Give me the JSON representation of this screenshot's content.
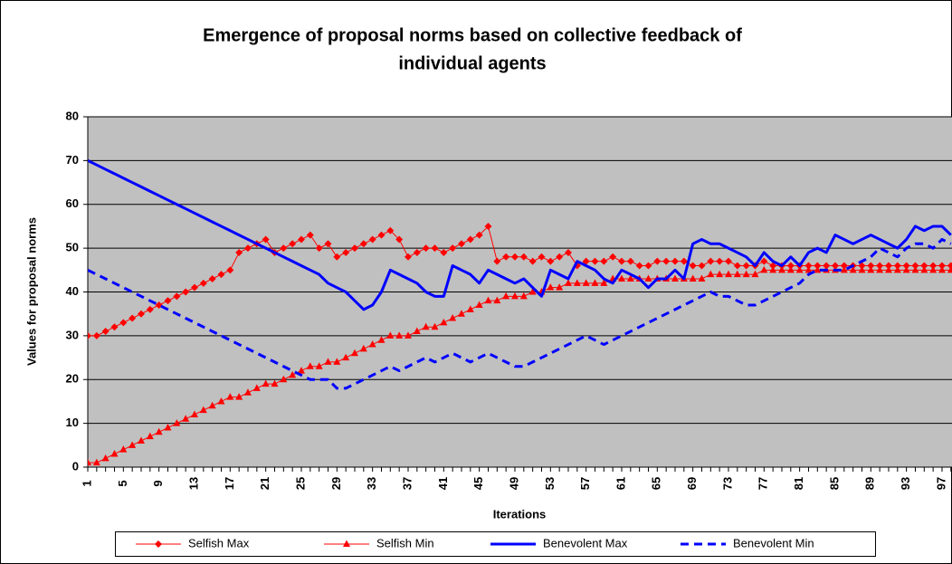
{
  "chart_data": {
    "type": "line",
    "title": "Emergence of proposal norms based on collective feedback of",
    "title_line2": "individual agents",
    "x_label": "Iterations",
    "y_label": "Values for proposal norms",
    "categories": [
      1,
      null,
      null,
      null,
      5,
      null,
      null,
      null,
      9,
      null,
      null,
      null,
      13,
      null,
      null,
      null,
      17,
      null,
      null,
      null,
      21,
      null,
      null,
      null,
      25,
      null,
      null,
      null,
      29,
      null,
      null,
      null,
      33,
      null,
      null,
      null,
      37,
      null,
      null,
      null,
      41,
      null,
      null,
      null,
      45,
      null,
      null,
      null,
      49,
      null,
      null,
      null,
      53,
      null,
      null,
      null,
      57,
      null,
      null,
      null,
      61,
      null,
      null,
      null,
      65,
      null,
      null,
      null,
      69,
      null,
      null,
      null,
      73,
      null,
      null,
      null,
      77,
      null,
      null,
      null,
      81,
      null,
      null,
      null,
      85,
      null,
      null,
      null,
      89,
      null,
      null,
      null,
      93,
      null,
      null,
      null,
      97,
      null
    ],
    "ylim": [
      0,
      80
    ],
    "yticks": [
      0,
      10,
      20,
      30,
      40,
      50,
      60,
      70,
      80
    ],
    "grid": true,
    "legend": "bottom",
    "series": [
      {
        "name": "Selfish Max",
        "color": "#ff0000",
        "marker": "diamond",
        "style": "solid",
        "width": 1,
        "values": [
          30,
          30,
          31,
          32,
          33,
          34,
          35,
          36,
          37,
          38,
          39,
          40,
          41,
          42,
          43,
          44,
          45,
          49,
          50,
          51,
          52,
          49,
          50,
          51,
          52,
          53,
          50,
          51,
          48,
          49,
          50,
          51,
          52,
          53,
          54,
          52,
          48,
          49,
          50,
          50,
          49,
          50,
          51,
          52,
          53,
          55,
          47,
          48,
          48,
          48,
          47,
          48,
          47,
          48,
          49,
          46,
          47,
          47,
          47,
          48,
          47,
          47,
          46,
          46,
          47,
          47,
          47,
          47,
          46,
          46,
          47,
          47,
          47,
          46,
          46,
          46,
          47,
          46,
          46,
          46,
          46,
          46,
          46,
          46,
          46,
          46,
          46,
          46,
          46,
          46,
          46,
          46,
          46,
          46,
          46,
          46,
          46,
          46
        ]
      },
      {
        "name": "Selfish Min",
        "color": "#ff0000",
        "marker": "triangle",
        "style": "solid",
        "width": 1,
        "values": [
          1,
          1,
          2,
          3,
          4,
          5,
          6,
          7,
          8,
          9,
          10,
          11,
          12,
          13,
          14,
          15,
          16,
          16,
          17,
          18,
          19,
          19,
          20,
          21,
          22,
          23,
          23,
          24,
          24,
          25,
          26,
          27,
          28,
          29,
          30,
          30,
          30,
          31,
          32,
          32,
          33,
          34,
          35,
          36,
          37,
          38,
          38,
          39,
          39,
          39,
          40,
          40,
          41,
          41,
          42,
          42,
          42,
          42,
          42,
          43,
          43,
          43,
          43,
          43,
          43,
          43,
          43,
          43,
          43,
          43,
          44,
          44,
          44,
          44,
          44,
          44,
          45,
          45,
          45,
          45,
          45,
          45,
          45,
          45,
          45,
          45,
          45,
          45,
          45,
          45,
          45,
          45,
          45,
          45,
          45,
          45,
          45,
          45
        ]
      },
      {
        "name": "Benevolent Max",
        "color": "#0000ff",
        "marker": "none",
        "style": "solid",
        "width": 3,
        "values": [
          70,
          69,
          68,
          67,
          66,
          65,
          64,
          63,
          62,
          61,
          60,
          59,
          58,
          57,
          56,
          55,
          54,
          53,
          52,
          51,
          50,
          49,
          48,
          47,
          46,
          45,
          44,
          42,
          41,
          40,
          38,
          36,
          37,
          40,
          45,
          44,
          43,
          42,
          40,
          39,
          39,
          46,
          45,
          44,
          42,
          45,
          44,
          43,
          42,
          43,
          41,
          39,
          45,
          44,
          43,
          47,
          46,
          45,
          43,
          42,
          45,
          44,
          43,
          41,
          43,
          43,
          45,
          43,
          51,
          52,
          51,
          51,
          50,
          49,
          48,
          46,
          49,
          47,
          46,
          48,
          46,
          49,
          50,
          49,
          53,
          52,
          51,
          52,
          53,
          52,
          51,
          50,
          52,
          55,
          54,
          55,
          55,
          53
        ]
      },
      {
        "name": "Benevolent Min",
        "color": "#0000ff",
        "marker": "none",
        "style": "dashed",
        "width": 3,
        "values": [
          45,
          44,
          43,
          42,
          41,
          40,
          39,
          38,
          37,
          36,
          35,
          34,
          33,
          32,
          31,
          30,
          29,
          28,
          27,
          26,
          25,
          24,
          23,
          22,
          21,
          20,
          20,
          20,
          18,
          18,
          19,
          20,
          21,
          22,
          23,
          22,
          23,
          24,
          25,
          24,
          25,
          26,
          25,
          24,
          25,
          26,
          25,
          24,
          23,
          23,
          24,
          25,
          26,
          27,
          28,
          29,
          30,
          29,
          28,
          29,
          30,
          31,
          32,
          33,
          34,
          35,
          36,
          37,
          38,
          39,
          40,
          39,
          39,
          38,
          37,
          37,
          38,
          39,
          40,
          41,
          42,
          44,
          45,
          45,
          45,
          45,
          46,
          47,
          48,
          50,
          49,
          48,
          50,
          51,
          51,
          50,
          52,
          51
        ]
      }
    ]
  }
}
